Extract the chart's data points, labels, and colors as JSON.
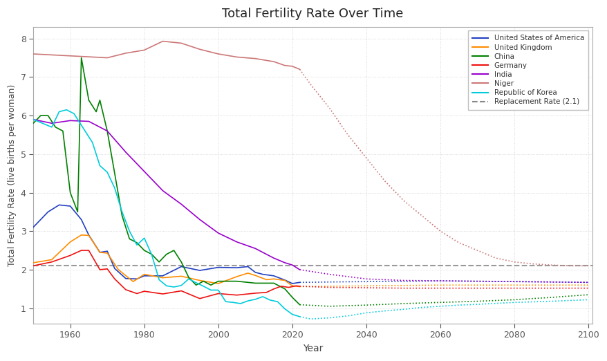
{
  "title": "Total Fertility Rate Over Time",
  "xlabel": "Year",
  "ylabel": "Total Fertility Rate (live births per woman)",
  "replacement_rate": 2.1,
  "xlim": [
    1950,
    2101
  ],
  "ylim": [
    0.6,
    8.3
  ],
  "projection_start_year": 2022,
  "background_color": "#ffffff",
  "grid_color": "#d0d0d0",
  "countries": {
    "United States of America": {
      "color": "#2040c0",
      "historical": {
        "years": [
          1950,
          1952,
          1954,
          1957,
          1960,
          1963,
          1965,
          1968,
          1970,
          1972,
          1975,
          1978,
          1980,
          1985,
          1990,
          1995,
          2000,
          2005,
          2008,
          2010,
          2012,
          2015,
          2018,
          2020,
          2022
        ],
        "values": [
          3.1,
          3.3,
          3.5,
          3.68,
          3.65,
          3.3,
          2.9,
          2.45,
          2.48,
          2.03,
          1.77,
          1.76,
          1.84,
          1.84,
          2.08,
          1.98,
          2.06,
          2.05,
          2.08,
          1.93,
          1.88,
          1.84,
          1.73,
          1.64,
          1.67
        ]
      },
      "projection": {
        "years": [
          2022,
          2030,
          2040,
          2050,
          2060,
          2070,
          2080,
          2090,
          2100
        ],
        "values": [
          1.67,
          1.68,
          1.69,
          1.7,
          1.71,
          1.7,
          1.69,
          1.68,
          1.67
        ]
      }
    },
    "United Kingdom": {
      "color": "#ff8c00",
      "historical": {
        "years": [
          1950,
          1955,
          1960,
          1963,
          1965,
          1968,
          1970,
          1973,
          1977,
          1980,
          1985,
          1990,
          1995,
          2000,
          2005,
          2008,
          2010,
          2013,
          2015,
          2018,
          2020,
          2022
        ],
        "values": [
          2.18,
          2.26,
          2.72,
          2.9,
          2.89,
          2.45,
          2.43,
          2.0,
          1.69,
          1.88,
          1.79,
          1.83,
          1.72,
          1.64,
          1.82,
          1.91,
          1.85,
          1.74,
          1.76,
          1.72,
          1.58,
          1.56
        ]
      },
      "projection": {
        "years": [
          2022,
          2030,
          2040,
          2050,
          2060,
          2070,
          2080,
          2090,
          2100
        ],
        "values": [
          1.56,
          1.57,
          1.58,
          1.59,
          1.6,
          1.6,
          1.6,
          1.6,
          1.6
        ]
      }
    },
    "China": {
      "color": "#008000",
      "historical": {
        "years": [
          1950,
          1952,
          1954,
          1956,
          1958,
          1960,
          1962,
          1963,
          1965,
          1967,
          1968,
          1970,
          1972,
          1974,
          1976,
          1978,
          1980,
          1982,
          1984,
          1986,
          1988,
          1990,
          1992,
          1994,
          1996,
          1998,
          2000,
          2005,
          2010,
          2015,
          2018,
          2020,
          2022
        ],
        "values": [
          5.8,
          6.0,
          6.0,
          5.7,
          5.6,
          4.0,
          3.5,
          7.5,
          6.4,
          6.1,
          6.4,
          5.6,
          4.5,
          3.4,
          2.8,
          2.7,
          2.5,
          2.4,
          2.2,
          2.4,
          2.5,
          2.2,
          1.8,
          1.6,
          1.7,
          1.6,
          1.7,
          1.7,
          1.65,
          1.65,
          1.5,
          1.28,
          1.09
        ]
      },
      "projection": {
        "years": [
          2022,
          2030,
          2040,
          2050,
          2060,
          2070,
          2080,
          2090,
          2100
        ],
        "values": [
          1.09,
          1.05,
          1.08,
          1.12,
          1.15,
          1.18,
          1.22,
          1.28,
          1.35
        ]
      }
    },
    "Germany": {
      "color": "#ee1111",
      "historical": {
        "years": [
          1950,
          1955,
          1960,
          1963,
          1965,
          1968,
          1970,
          1972,
          1975,
          1978,
          1980,
          1985,
          1990,
          1995,
          2000,
          2005,
          2010,
          2013,
          2015,
          2017,
          2019,
          2021,
          2022
        ],
        "values": [
          2.1,
          2.2,
          2.37,
          2.5,
          2.5,
          2.0,
          2.02,
          1.76,
          1.48,
          1.38,
          1.44,
          1.37,
          1.45,
          1.25,
          1.38,
          1.34,
          1.39,
          1.41,
          1.5,
          1.57,
          1.54,
          1.58,
          1.57
        ]
      },
      "projection": {
        "years": [
          2022,
          2030,
          2040,
          2050,
          2060,
          2070,
          2080,
          2090,
          2100
        ],
        "values": [
          1.57,
          1.54,
          1.53,
          1.52,
          1.52,
          1.52,
          1.52,
          1.52,
          1.52
        ]
      }
    },
    "India": {
      "color": "#9900cc",
      "historical": {
        "years": [
          1950,
          1955,
          1960,
          1965,
          1970,
          1975,
          1980,
          1985,
          1990,
          1995,
          2000,
          2005,
          2010,
          2015,
          2018,
          2020,
          2022
        ],
        "values": [
          5.9,
          5.8,
          5.87,
          5.85,
          5.6,
          5.05,
          4.55,
          4.05,
          3.7,
          3.3,
          2.95,
          2.72,
          2.55,
          2.3,
          2.18,
          2.12,
          2.0
        ]
      },
      "projection": {
        "years": [
          2022,
          2030,
          2040,
          2050,
          2060,
          2070,
          2080,
          2090,
          2100
        ],
        "values": [
          2.0,
          1.88,
          1.76,
          1.72,
          1.71,
          1.7,
          1.69,
          1.68,
          1.67
        ]
      }
    },
    "Niger": {
      "color": "#cc7777",
      "historical": {
        "years": [
          1950,
          1960,
          1970,
          1975,
          1980,
          1985,
          1990,
          1995,
          2000,
          2005,
          2010,
          2015,
          2018,
          2020,
          2022
        ],
        "values": [
          7.6,
          7.55,
          7.5,
          7.62,
          7.7,
          7.93,
          7.88,
          7.72,
          7.6,
          7.52,
          7.48,
          7.4,
          7.3,
          7.28,
          7.2
        ]
      },
      "projection": {
        "years": [
          2022,
          2025,
          2030,
          2035,
          2040,
          2045,
          2050,
          2055,
          2060,
          2065,
          2070,
          2075,
          2080,
          2085,
          2090,
          2095,
          2100
        ],
        "values": [
          7.2,
          6.8,
          6.2,
          5.5,
          4.9,
          4.3,
          3.8,
          3.4,
          3.0,
          2.7,
          2.5,
          2.3,
          2.2,
          2.15,
          2.12,
          2.1,
          2.1
        ]
      }
    },
    "Republic of Korea": {
      "color": "#00ccdd",
      "historical": {
        "years": [
          1950,
          1955,
          1957,
          1959,
          1961,
          1963,
          1966,
          1968,
          1970,
          1972,
          1974,
          1976,
          1978,
          1980,
          1982,
          1984,
          1986,
          1988,
          1990,
          1992,
          1994,
          1996,
          1998,
          2000,
          2002,
          2004,
          2006,
          2008,
          2010,
          2012,
          2014,
          2016,
          2018,
          2020,
          2022
        ],
        "values": [
          5.9,
          5.7,
          6.1,
          6.15,
          6.05,
          5.75,
          5.3,
          4.7,
          4.53,
          4.12,
          3.5,
          3.0,
          2.64,
          2.82,
          2.39,
          1.74,
          1.58,
          1.55,
          1.59,
          1.76,
          1.66,
          1.57,
          1.47,
          1.47,
          1.17,
          1.15,
          1.12,
          1.19,
          1.23,
          1.3,
          1.21,
          1.17,
          0.98,
          0.84,
          0.78
        ]
      },
      "projection": {
        "years": [
          2022,
          2025,
          2030,
          2035,
          2040,
          2045,
          2050,
          2055,
          2060,
          2065,
          2070,
          2080,
          2090,
          2100
        ],
        "values": [
          0.78,
          0.72,
          0.75,
          0.8,
          0.88,
          0.93,
          0.97,
          1.02,
          1.05,
          1.08,
          1.1,
          1.15,
          1.18,
          1.22
        ]
      }
    }
  },
  "legend_entries": [
    "United States of America",
    "United Kingdom",
    "China",
    "Germany",
    "India",
    "Niger",
    "Republic of Korea",
    "Replacement Rate (2.1)"
  ]
}
